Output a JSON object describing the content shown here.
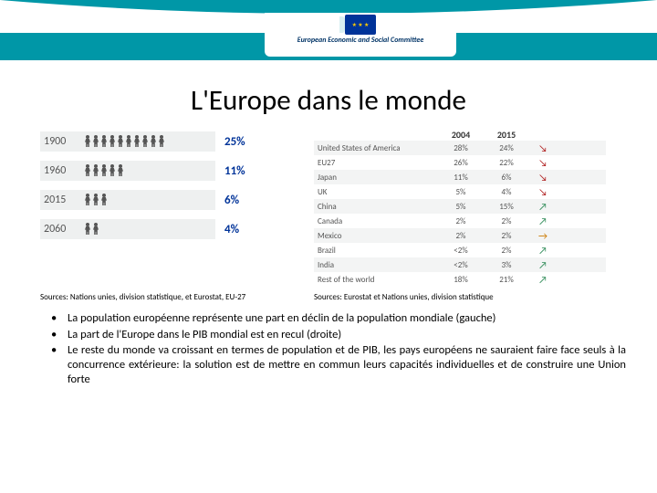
{
  "header": {
    "logo_text": "European Economic and Social Committee"
  },
  "title": "L'Europe dans le monde",
  "population_chart": {
    "type": "infographic",
    "rows": [
      {
        "year": "1900",
        "figures": 10,
        "pct": "25%"
      },
      {
        "year": "1960",
        "figures": 5,
        "pct": "11%"
      },
      {
        "year": "2015",
        "figures": 3,
        "pct": "6%"
      },
      {
        "year": "2060",
        "figures": 2,
        "pct": "4%"
      }
    ],
    "colors": {
      "row_bg": "#eef0f0",
      "fig": "#555555",
      "pct": "#003399"
    }
  },
  "gdp_table": {
    "type": "table",
    "columns": [
      "",
      "2004",
      "2015",
      ""
    ],
    "rows": [
      {
        "name": "United States of America",
        "v04": "28%",
        "v15": "24%",
        "trend": "down"
      },
      {
        "name": "EU27",
        "v04": "26%",
        "v15": "22%",
        "trend": "down"
      },
      {
        "name": "Japan",
        "v04": "11%",
        "v15": "6%",
        "trend": "down"
      },
      {
        "name": "UK",
        "v04": "5%",
        "v15": "4%",
        "trend": "down"
      },
      {
        "name": "China",
        "v04": "5%",
        "v15": "15%",
        "trend": "up"
      },
      {
        "name": "Canada",
        "v04": "2%",
        "v15": "2%",
        "trend": "up"
      },
      {
        "name": "Mexico",
        "v04": "2%",
        "v15": "2%",
        "trend": "flat"
      },
      {
        "name": "Brazil",
        "v04": "<2%",
        "v15": "2%",
        "trend": "up"
      },
      {
        "name": "India",
        "v04": "<2%",
        "v15": "3%",
        "trend": "up"
      },
      {
        "name": "Rest of the world",
        "v04": "18%",
        "v15": "21%",
        "trend": "up"
      }
    ]
  },
  "sources": {
    "left": "Sources: Nations unies, division statistique, et Eurostat, EU-27",
    "right": "Sources: Eurostat et Nations unies, division statistique"
  },
  "bullets": [
    "La population européenne représente une part en déclin de la population mondiale (gauche)",
    "La part de l'Europe dans le PIB mondial est en recul (droite)",
    "Le reste du monde va croissant en termes de population et de PIB, les pays européens ne sauraient faire face seuls à la concurrence extérieure: la solution est de mettre en commun leurs capacités individuelles et de construire une Union forte"
  ],
  "theme": {
    "teal": "#0097a7",
    "title_color": "#000000"
  }
}
